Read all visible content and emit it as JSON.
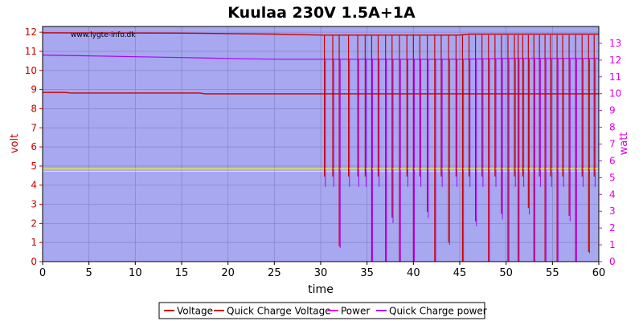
{
  "chart_data": {
    "type": "line",
    "title": "Kuulaa 230V 1.5A+1A",
    "watermark": "www.lygte-info.dk",
    "xlabel": "time",
    "ylabel_left": "volt",
    "ylabel_right": "watt",
    "xlim": [
      0,
      60
    ],
    "ylim_left": [
      0,
      12.3
    ],
    "ylim_right": [
      0,
      14.0
    ],
    "x_ticks": [
      "0",
      "5",
      "10",
      "15",
      "20",
      "25",
      "30",
      "35",
      "40",
      "45",
      "50",
      "55",
      "60"
    ],
    "y_left_ticks": [
      "0",
      "1",
      "2",
      "3",
      "4",
      "5",
      "6",
      "7",
      "8",
      "9",
      "10",
      "11",
      "12"
    ],
    "y_right_ticks": [
      "0",
      "1",
      "2",
      "3",
      "4",
      "5",
      "6",
      "7",
      "8",
      "9",
      "10",
      "11",
      "12",
      "13"
    ],
    "grid": true,
    "legend_position": "bottom",
    "colors": {
      "plot_bg": "#a8a8f0",
      "grid": "#8888cc",
      "left_axis": "#cc0000",
      "right_axis": "#dd00dd",
      "voltage": "#cc0000",
      "qc_voltage": "#cc0000",
      "power": "#dd00dd",
      "qc_power": "#aa00ff",
      "ref_lines": "#ffff00"
    },
    "series": [
      {
        "name": "Voltage",
        "axis": "left",
        "color": "#cc0000",
        "x": [
          0,
          2.5,
          3,
          10,
          17,
          17.5,
          25,
          30,
          35,
          40,
          45,
          50,
          55,
          60
        ],
        "y": [
          8.85,
          8.85,
          8.82,
          8.82,
          8.82,
          8.78,
          8.78,
          8.78,
          8.78,
          8.78,
          8.78,
          8.78,
          8.78,
          8.78
        ]
      },
      {
        "name": "Quick Charge Voltage",
        "axis": "left",
        "color": "#cc0000",
        "x": [
          0,
          15,
          25,
          30,
          30.4,
          45,
          46,
          51.2,
          60
        ],
        "y": [
          11.97,
          11.95,
          11.9,
          11.85,
          11.85,
          11.85,
          11.9,
          11.9,
          11.9
        ],
        "dropouts": [
          {
            "x": 30.4,
            "y": 4.45
          },
          {
            "x": 31.3,
            "y": 4.45
          },
          {
            "x": 32.0,
            "y": 0.8
          },
          {
            "x": 33.0,
            "y": 4.45
          },
          {
            "x": 34.0,
            "y": 4.45
          },
          {
            "x": 34.8,
            "y": 4.45
          },
          {
            "x": 35.5,
            "y": 0.0
          },
          {
            "x": 36.2,
            "y": 4.45
          },
          {
            "x": 37.0,
            "y": 0.0
          },
          {
            "x": 37.7,
            "y": 2.3
          },
          {
            "x": 38.5,
            "y": 0.0
          },
          {
            "x": 39.3,
            "y": 4.45
          },
          {
            "x": 40.0,
            "y": 0.0
          },
          {
            "x": 40.7,
            "y": 4.45
          },
          {
            "x": 41.5,
            "y": 2.6
          },
          {
            "x": 42.3,
            "y": 0.0
          },
          {
            "x": 43.0,
            "y": 4.45
          },
          {
            "x": 43.8,
            "y": 1.0
          },
          {
            "x": 44.6,
            "y": 4.45
          },
          {
            "x": 45.3,
            "y": 0.0
          },
          {
            "x": 46.0,
            "y": 4.45
          },
          {
            "x": 46.7,
            "y": 2.1
          },
          {
            "x": 47.4,
            "y": 4.45
          },
          {
            "x": 48.1,
            "y": 0.0
          },
          {
            "x": 48.8,
            "y": 4.45
          },
          {
            "x": 49.5,
            "y": 2.5
          },
          {
            "x": 50.2,
            "y": 0.0
          },
          {
            "x": 50.9,
            "y": 4.45
          },
          {
            "x": 51.3,
            "y": 0.0
          },
          {
            "x": 51.8,
            "y": 4.45
          },
          {
            "x": 52.4,
            "y": 2.8
          },
          {
            "x": 53.0,
            "y": 0.0
          },
          {
            "x": 53.6,
            "y": 4.45
          },
          {
            "x": 54.2,
            "y": 0.0
          },
          {
            "x": 54.8,
            "y": 4.45
          },
          {
            "x": 55.5,
            "y": 0.0
          },
          {
            "x": 56.1,
            "y": 4.45
          },
          {
            "x": 56.8,
            "y": 2.4
          },
          {
            "x": 57.5,
            "y": 0.0
          },
          {
            "x": 58.2,
            "y": 4.45
          },
          {
            "x": 58.9,
            "y": 0.5
          },
          {
            "x": 59.5,
            "y": 4.45
          }
        ]
      },
      {
        "name": "Power",
        "axis": "right",
        "color": "#dd00dd",
        "x": [
          0,
          10,
          20,
          30,
          40,
          50,
          60
        ],
        "y": [
          5.38,
          5.38,
          5.38,
          5.38,
          5.38,
          5.38,
          5.38
        ]
      },
      {
        "name": "Quick Charge power",
        "axis": "right",
        "color": "#aa00ff",
        "x": [
          0,
          5,
          10,
          15,
          20,
          25,
          30,
          35,
          40,
          45,
          50,
          55,
          60
        ],
        "y": [
          12.3,
          12.25,
          12.2,
          12.15,
          12.1,
          12.05,
          12.05,
          12.05,
          12.05,
          12.05,
          12.1,
          12.1,
          12.1
        ]
      }
    ]
  }
}
